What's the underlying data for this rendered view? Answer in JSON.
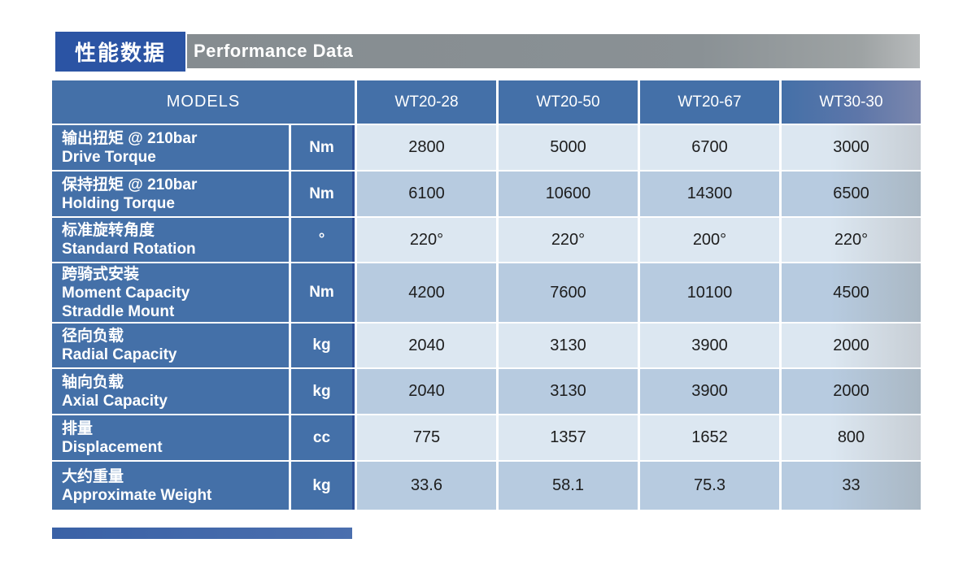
{
  "header": {
    "title_zh": "性能数据",
    "title_en": "Performance Data"
  },
  "table": {
    "models_label": "MODELS",
    "columns": [
      "WT20-28",
      "WT20-50",
      "WT20-67",
      "WT30-30"
    ],
    "rows": [
      {
        "label_lines": [
          "输出扭矩 @ 210bar",
          "Drive Torque"
        ],
        "unit": "Nm",
        "values": [
          "2800",
          "5000",
          "6700",
          "3000"
        ]
      },
      {
        "label_lines": [
          "保持扭矩 @ 210bar",
          "Holding Torque"
        ],
        "unit": "Nm",
        "values": [
          "6100",
          "10600",
          "14300",
          "6500"
        ]
      },
      {
        "label_lines": [
          "标准旋转角度",
          "Standard Rotation"
        ],
        "unit": "°",
        "values": [
          "220°",
          "220°",
          "200°",
          "220°"
        ]
      },
      {
        "label_lines": [
          "跨骑式安装",
          "Moment Capacity",
          "Straddle Mount"
        ],
        "unit": "Nm",
        "values": [
          "4200",
          "7600",
          "10100",
          "4500"
        ]
      },
      {
        "label_lines": [
          "径向负载",
          "Radial Capacity"
        ],
        "unit": "kg",
        "values": [
          "2040",
          "3130",
          "3900",
          "2000"
        ]
      },
      {
        "label_lines": [
          "轴向负载",
          "Axial Capacity"
        ],
        "unit": "kg",
        "values": [
          "2040",
          "3130",
          "3900",
          "2000"
        ]
      },
      {
        "label_lines": [
          "排量",
          "Displacement"
        ],
        "unit": "cc",
        "values": [
          "775",
          "1357",
          "1652",
          "800"
        ]
      },
      {
        "label_lines": [
          "大约重量",
          "Approximate Weight"
        ],
        "unit": "kg",
        "values": [
          "33.6",
          "58.1",
          "75.3",
          "33"
        ]
      }
    ]
  },
  "colors": {
    "section_box_blue": "#2b54a4",
    "section_bar_gray": "#8a9195",
    "header_blue": "#4470a8",
    "label_blue": "#4470a8",
    "unit_edge_navy": "#2d4e96",
    "cell_light": "#dce7f1",
    "cell_medium": "#b7cbe0",
    "cell_light_fade": "#c7ced5",
    "cell_medium_fade": "#aab8c4",
    "header_fade": "#7b87ad",
    "value_text": "#1d1d1d",
    "bottom_bar_blue": "#4b6fae"
  }
}
